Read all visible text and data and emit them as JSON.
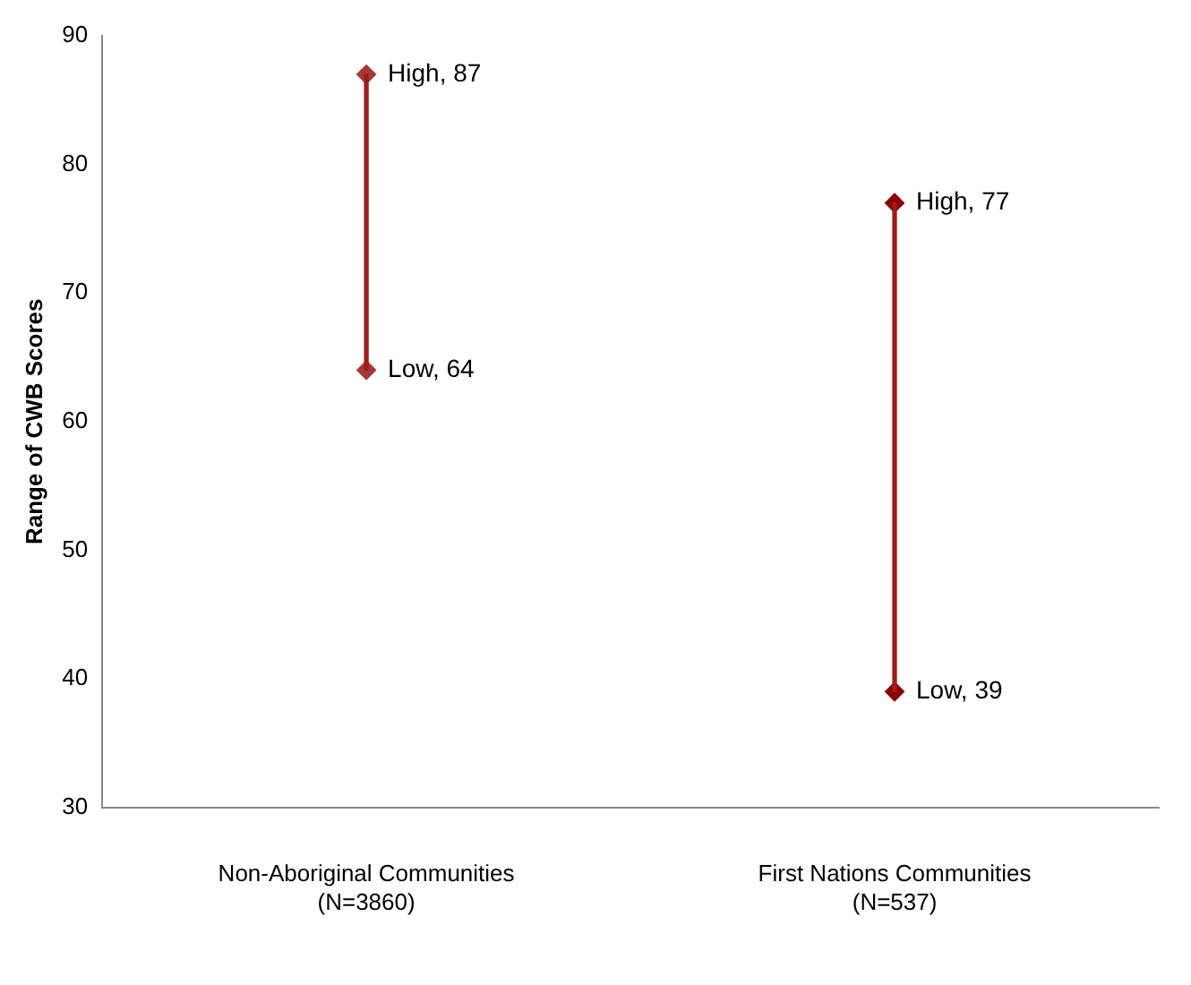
{
  "chart_data": {
    "type": "bar",
    "ylabel": "Range of CWB Scores",
    "categories": [
      "Non-Aboriginal Communities\n(N=3860)",
      "First Nations Communities\n(N=537)"
    ],
    "series": [
      {
        "color": "#a01c1c",
        "base": [
          64,
          39
        ],
        "values": [
          23,
          38
        ]
      },
      {
        "type": "scatter",
        "colors": [
          "#a33a3a",
          "#8b0000"
        ],
        "values": [
          87,
          77
        ],
        "value_labels": [
          "High, 87",
          "High, 77"
        ]
      },
      {
        "type": "scatter",
        "colors": [
          "#a33a3a",
          "#8b0000"
        ],
        "values": [
          64,
          39
        ],
        "value_labels": [
          "Low, 64",
          "Low, 39"
        ]
      }
    ],
    "marker": "diamond",
    "ylim": [
      30,
      90
    ],
    "yticks": [
      30,
      40,
      50,
      60,
      70,
      80,
      90
    ],
    "grid": false,
    "legend": false
  }
}
